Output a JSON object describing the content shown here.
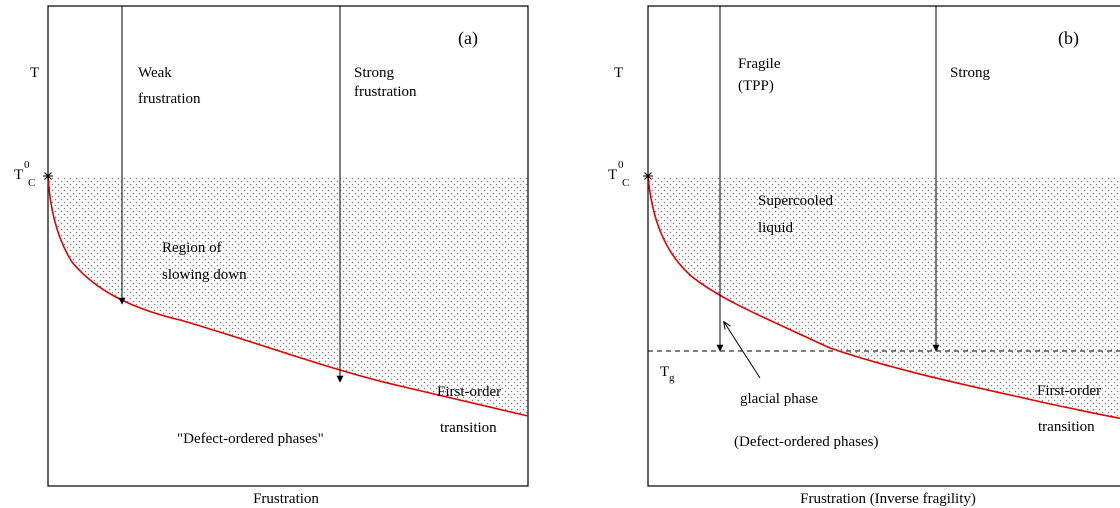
{
  "panels": [
    {
      "id": "a",
      "panel_label": "(a)",
      "y_axis_label": "T",
      "tc_main": "T",
      "tc_sup": "0",
      "tc_sub": "C",
      "x_axis_label": "Frustration",
      "arrow1_label": [
        "Weak",
        "frustration"
      ],
      "arrow2_label": [
        "Strong",
        "frustration"
      ],
      "region_label": [
        "Region of",
        "slowing down"
      ],
      "first_order_label": [
        "First-order",
        "transition"
      ],
      "bottom_label": "\"Defect-ordered phases\""
    },
    {
      "id": "b",
      "panel_label": "(b)",
      "y_axis_label": "T",
      "tc_main": "T",
      "tc_sup": "0",
      "tc_sub": "C",
      "tg_main": "T",
      "tg_sub": "g",
      "x_axis_label": "Frustration (Inverse fragility)",
      "arrow1_label": [
        "Fragile",
        "(TPP)"
      ],
      "arrow2_label": [
        "Strong"
      ],
      "region_label": [
        "Supercooled",
        "liquid"
      ],
      "first_order_label": [
        "First-order",
        "transition"
      ],
      "glacial_label": "glacial phase",
      "bottom_label": "(Defect-ordered phases)"
    }
  ],
  "colors": {
    "transition_curve": "#e00000",
    "frame": "#000000",
    "dots": "#7a7a7a"
  }
}
